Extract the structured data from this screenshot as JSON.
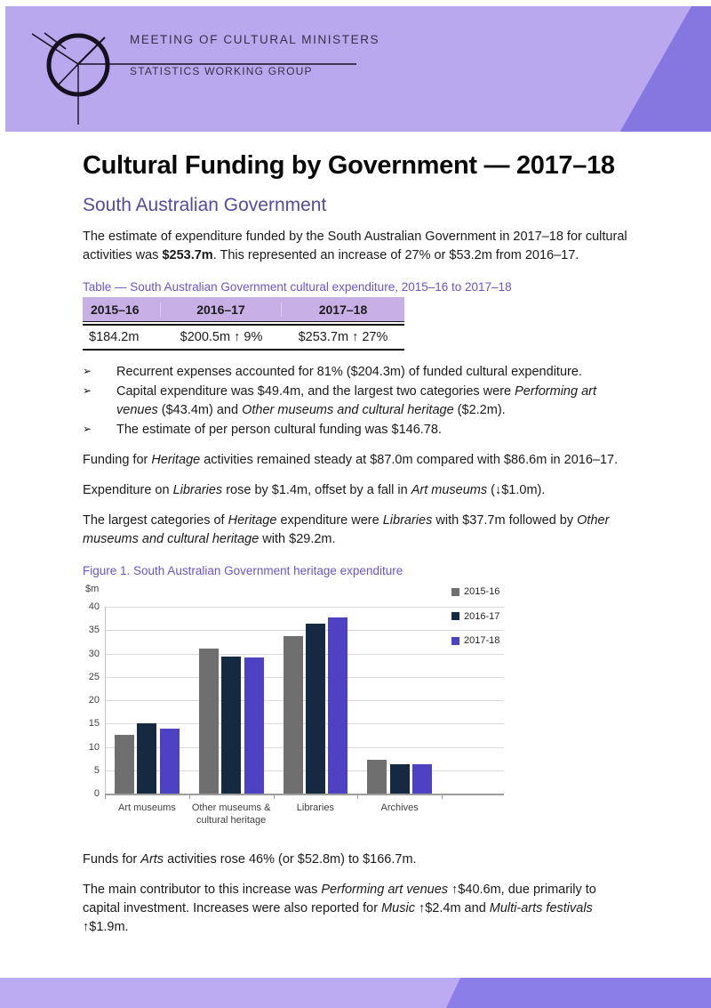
{
  "header": {
    "org_line1": "MEETING OF CULTURAL MINISTERS",
    "org_line2": "STATISTICS WORKING GROUP",
    "banner_color": "#b9a8ee",
    "banner_accent_color": "#8677e0"
  },
  "page": {
    "title": "Cultural Funding by Government — 2017–18",
    "subtitle": "South Australian Government"
  },
  "intro": [
    {
      "t": "The estimate of expenditure funded by the South Australian Government in 2017–18 for cultural activities was "
    },
    {
      "t": "$253.7m",
      "s": "b"
    },
    {
      "t": ". This represented an increase of 27% or $53.2m from 2016–17."
    }
  ],
  "table": {
    "caption": "Table — South Australian Government cultural expenditure, 2015–16 to 2017–18",
    "headers": [
      "2015–16",
      "2016–17",
      "2017–18"
    ],
    "row": [
      "$184.2m",
      "$200.5m ↑ 9%",
      "$253.7m ↑ 27%"
    ],
    "header_bg": "#c8b0e6"
  },
  "bullets": {
    "char": "➢",
    "items": [
      [
        {
          "t": "Recurrent expenses accounted for 81% ($204.3m) of funded cultural expenditure."
        }
      ],
      [
        {
          "t": "Capital expenditure was $49.4m, and the largest two categories were "
        },
        {
          "t": "Performing art venues",
          "s": "i"
        },
        {
          "t": " ($43.4m) and "
        },
        {
          "t": "Other museums and cultural heritage",
          "s": "i"
        },
        {
          "t": " ($2.2m)."
        }
      ],
      [
        {
          "t": "The estimate of per person cultural funding was $146.78."
        }
      ]
    ]
  },
  "paragraphs": {
    "heritage": [
      {
        "t": "Funding for "
      },
      {
        "t": "Heritage",
        "s": "i"
      },
      {
        "t": " activities remained steady at $87.0m compared with $86.6m in 2016–17."
      }
    ],
    "libraries": [
      {
        "t": "Expenditure on "
      },
      {
        "t": "Libraries",
        "s": "i"
      },
      {
        "t": " rose by $1.4m, offset by a fall in "
      },
      {
        "t": "Art museums",
        "s": "i"
      },
      {
        "t": " (↓$1.0m)."
      }
    ],
    "largest": [
      {
        "t": "The largest categories of "
      },
      {
        "t": "Heritage",
        "s": "i"
      },
      {
        "t": " expenditure were "
      },
      {
        "t": "Libraries",
        "s": "i"
      },
      {
        "t": " with $37.7m followed by "
      },
      {
        "t": "Other museums and cultural heritage",
        "s": "i"
      },
      {
        "t": " with $29.2m."
      }
    ],
    "arts": [
      {
        "t": "Funds for "
      },
      {
        "t": "Arts",
        "s": "i"
      },
      {
        "t": " activities rose 46% (or $52.8m) to $166.7m."
      }
    ],
    "contributor": [
      {
        "t": "The main contributor to this increase was "
      },
      {
        "t": "Performing art venues",
        "s": "i"
      },
      {
        "t": " ↑$40.6m, due primarily to capital investment. Increases were also reported for "
      },
      {
        "t": "Music",
        "s": "i"
      },
      {
        "t": " ↑$2.4m and "
      },
      {
        "t": "Multi-arts festivals",
        "s": "i"
      },
      {
        "t": " ↑$1.9m."
      }
    ]
  },
  "figure": {
    "caption": "Figure 1. South Australian Government heritage expenditure"
  },
  "chart_data": {
    "type": "bar",
    "title": "South Australian Government heritage expenditure",
    "unit_label": "$m",
    "categories": [
      "Art museums",
      "Other museums &\ncultural heritage",
      "Libraries",
      "Archives"
    ],
    "series": [
      {
        "name": "2015-16",
        "color": "#6f6f6f",
        "values": [
          12.5,
          31.0,
          33.8,
          7.3
        ]
      },
      {
        "name": "2016-17",
        "color": "#152940",
        "values": [
          15.0,
          29.3,
          36.3,
          6.2
        ]
      },
      {
        "name": "2017-18",
        "color": "#4e42c4",
        "values": [
          14.0,
          29.2,
          37.7,
          6.2
        ]
      }
    ],
    "ylim": [
      0,
      40
    ],
    "ytick_step": 5,
    "grid": true,
    "legend_position": "top-right"
  }
}
